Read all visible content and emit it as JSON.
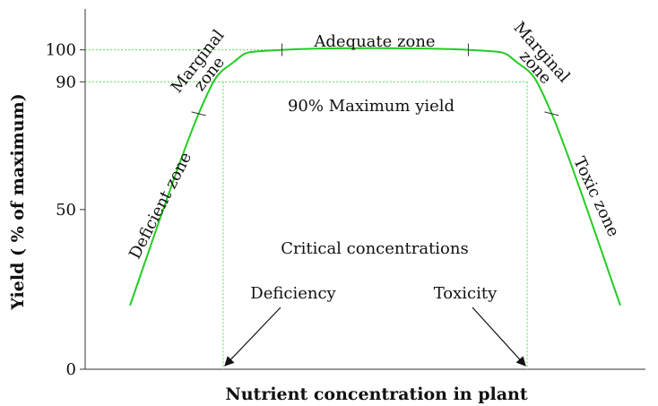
{
  "chart_data": {
    "type": "line",
    "title": "",
    "xlabel": "Nutrient concentration in plant",
    "ylabel": "Yield ( % of maximum)",
    "ylim": [
      0,
      110
    ],
    "yticks": [
      {
        "value": 0,
        "label": "0"
      },
      {
        "value": 50,
        "label": "50"
      },
      {
        "value": 90,
        "label": "90"
      },
      {
        "value": 100,
        "label": "100"
      }
    ],
    "xlim": [
      0,
      100
    ],
    "curve_color": "#22cc22",
    "guide_color": "#55dd55",
    "series": [
      {
        "values": [
          {
            "x": 0,
            "y": 20
          },
          {
            "x": 14,
            "y": 80
          },
          {
            "x": 21,
            "y": 96
          },
          {
            "x": 31,
            "y": 100
          },
          {
            "x": 69,
            "y": 100
          },
          {
            "x": 79,
            "y": 96
          },
          {
            "x": 86,
            "y": 80
          },
          {
            "x": 100,
            "y": 20
          }
        ]
      }
    ],
    "zone_boundaries": [
      {
        "x": 14,
        "y": 80
      },
      {
        "x": 31,
        "y": 100
      },
      {
        "x": 69,
        "y": 100
      },
      {
        "x": 86,
        "y": 80
      }
    ],
    "reference_line": {
      "y": 90,
      "label": "90% Maximum yield"
    },
    "critical_concentrations": {
      "heading": "Critical concentrations",
      "deficiency": {
        "x": 19,
        "label": "Deficiency"
      },
      "toxicity": {
        "x": 81,
        "label": "Toxicity"
      }
    },
    "zones": {
      "deficient": "Deficient zone",
      "marginal_left_1": "Marginal",
      "marginal_left_2": "zone",
      "adequate": "Adequate zone",
      "marginal_right_1": "Marginal",
      "marginal_right_2": "zone",
      "toxic": "Toxic zone"
    }
  }
}
